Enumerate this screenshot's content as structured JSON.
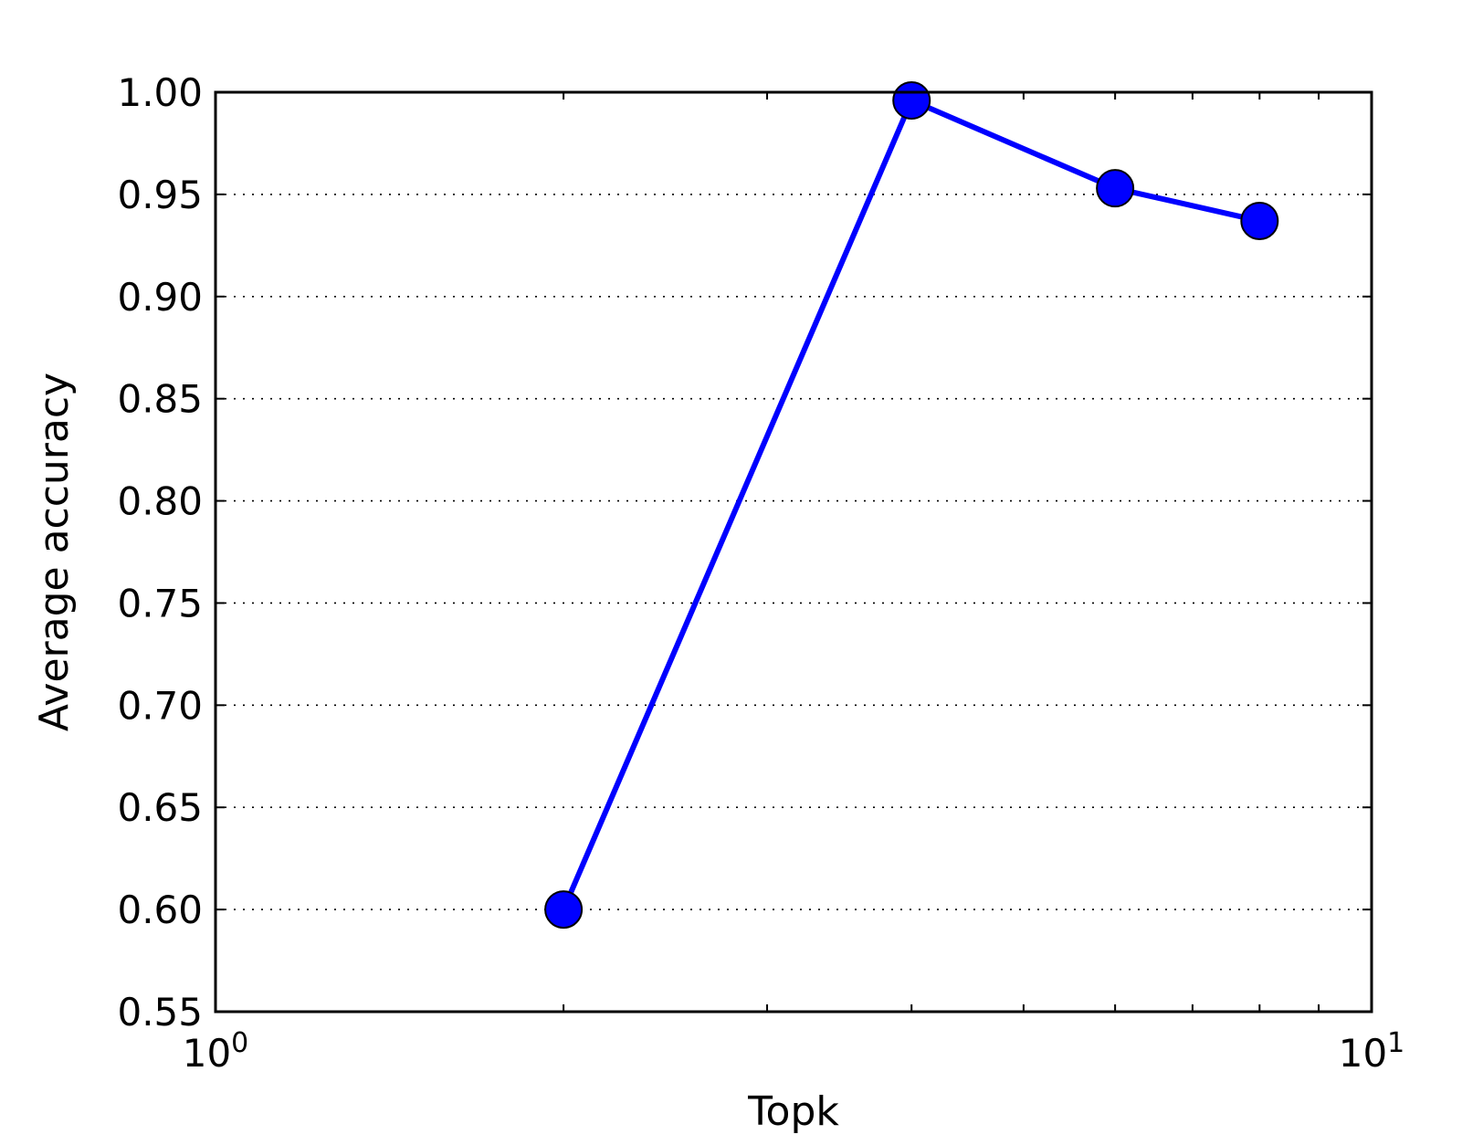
{
  "chart_data": {
    "type": "line",
    "title": "",
    "xlabel": "Topk",
    "ylabel": "Average accuracy",
    "xscale": "log",
    "xlim": [
      1,
      10
    ],
    "ylim": [
      0.55,
      1.0
    ],
    "grid": "horizontal dotted",
    "x_tick_labels": [
      {
        "value": 1,
        "base": "10",
        "exp": "0"
      },
      {
        "value": 10,
        "base": "10",
        "exp": "1"
      }
    ],
    "y_ticks": [
      0.55,
      0.6,
      0.65,
      0.7,
      0.75,
      0.8,
      0.85,
      0.9,
      0.95,
      1.0
    ],
    "y_tick_labels": [
      "0.55",
      "0.60",
      "0.65",
      "0.70",
      "0.75",
      "0.80",
      "0.85",
      "0.90",
      "0.95",
      "1.00"
    ],
    "series": [
      {
        "color": "#0000ff",
        "x": [
          2,
          4,
          6,
          8
        ],
        "y": [
          0.6,
          0.996,
          0.953,
          0.937
        ]
      }
    ]
  }
}
